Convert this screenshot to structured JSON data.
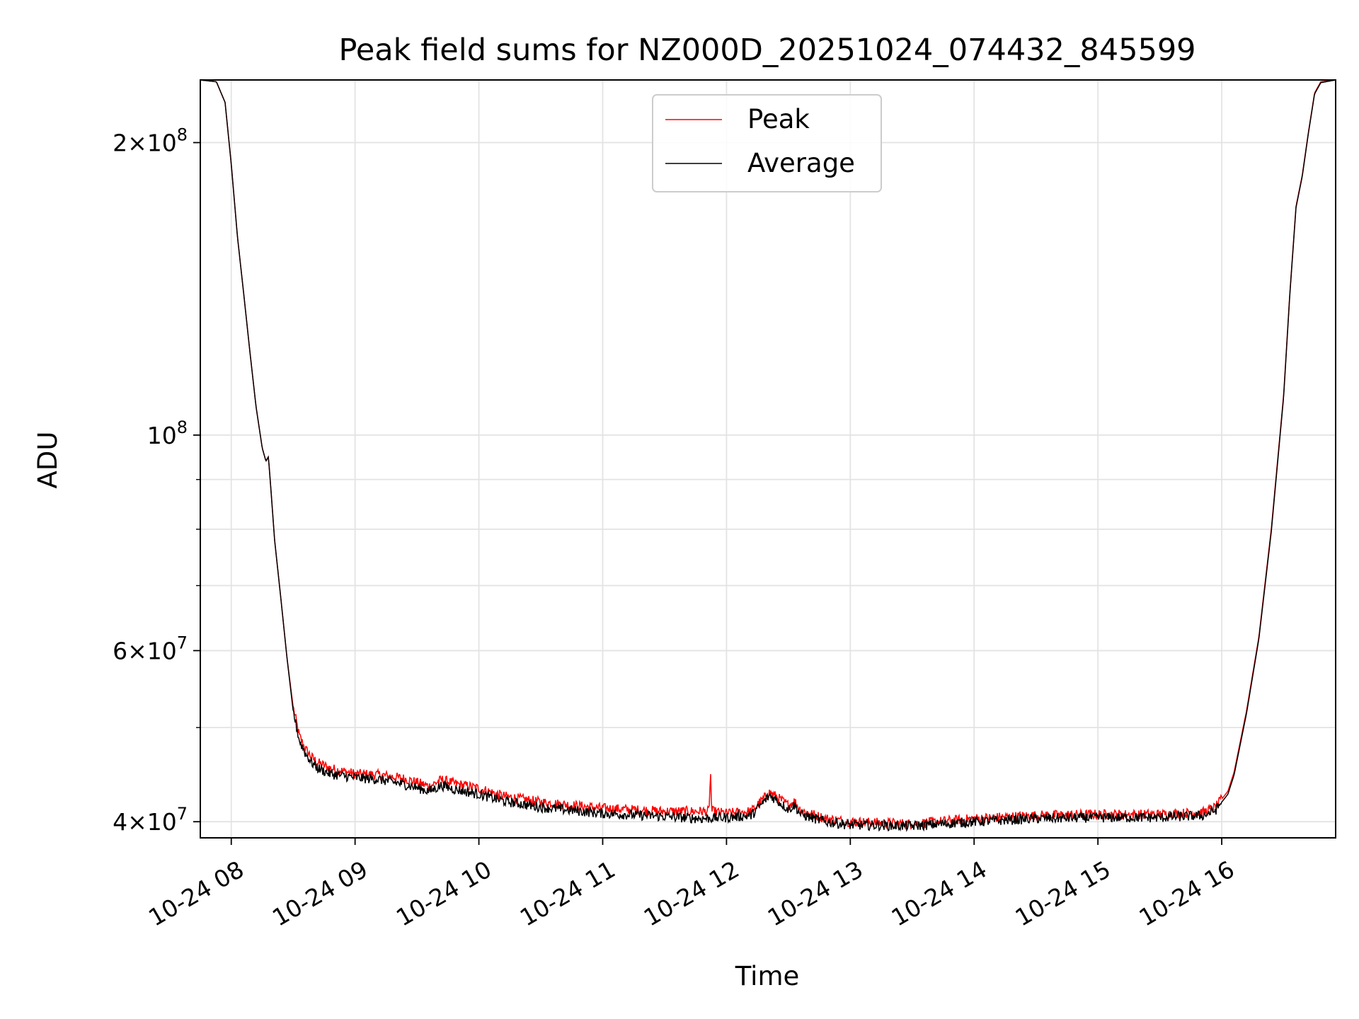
{
  "chart_data": {
    "type": "line",
    "title": "Peak field sums for NZ000D_20251024_074432_845599",
    "xlabel": "Time",
    "ylabel": "ADU",
    "yscale": "log",
    "xlim": [
      7.75,
      16.92
    ],
    "ylim": [
      38500000,
      232000000
    ],
    "grid": true,
    "legend_position": "top-center",
    "x_ticks": [
      {
        "value": 8,
        "label": "10-24 08"
      },
      {
        "value": 9,
        "label": "10-24 09"
      },
      {
        "value": 10,
        "label": "10-24 10"
      },
      {
        "value": 11,
        "label": "10-24 11"
      },
      {
        "value": 12,
        "label": "10-24 12"
      },
      {
        "value": 13,
        "label": "10-24 13"
      },
      {
        "value": 14,
        "label": "10-24 14"
      },
      {
        "value": 15,
        "label": "10-24 15"
      },
      {
        "value": 16,
        "label": "10-24 16"
      }
    ],
    "y_major_ticks": [
      {
        "value": 40000000,
        "mant": "4",
        "exp": "7"
      },
      {
        "value": 60000000,
        "mant": "6",
        "exp": "7"
      },
      {
        "value": 100000000,
        "mant": "",
        "exp": "8"
      },
      {
        "value": 200000000,
        "mant": "2",
        "exp": "8"
      }
    ],
    "y_minor_grid": [
      50000000,
      70000000,
      80000000,
      90000000
    ],
    "x_units": "hours (2025-10-24)",
    "series": [
      {
        "name": "Peak",
        "color": "#ff0000",
        "noise": 0.012,
        "x": [
          7.75,
          7.88,
          7.95,
          8.0,
          8.05,
          8.1,
          8.15,
          8.2,
          8.25,
          8.28,
          8.3,
          8.32,
          8.35,
          8.4,
          8.45,
          8.5,
          8.55,
          8.6,
          8.65,
          8.7,
          8.8,
          8.9,
          9.0,
          9.2,
          9.4,
          9.6,
          9.7,
          9.8,
          10.0,
          10.2,
          10.5,
          11.0,
          11.5,
          11.8,
          11.86,
          11.87,
          11.88,
          12.0,
          12.2,
          12.35,
          12.5,
          12.55,
          12.6,
          12.8,
          13.0,
          13.5,
          14.0,
          14.5,
          15.0,
          15.5,
          15.85,
          15.95,
          16.05,
          16.1,
          16.2,
          16.3,
          16.4,
          16.5,
          16.55,
          16.6,
          16.65,
          16.7,
          16.75,
          16.8,
          16.92
        ],
        "y": [
          232000000,
          231000000,
          220000000,
          190000000,
          160000000,
          140000000,
          122000000,
          107000000,
          97000000,
          94000000,
          95000000,
          88000000,
          78000000,
          68000000,
          59000000,
          52500000,
          49000000,
          47500000,
          46600000,
          46000000,
          45400000,
          45100000,
          44800000,
          44700000,
          44300000,
          43500000,
          44200000,
          43800000,
          43300000,
          42500000,
          41900000,
          41300000,
          41000000,
          41000000,
          41000000,
          45500000,
          41000000,
          40800000,
          41000000,
          42900000,
          41600000,
          42000000,
          41100000,
          40300000,
          40000000,
          39800000,
          40300000,
          40600000,
          40700000,
          40700000,
          40900000,
          41400000,
          43000000,
          45000000,
          52000000,
          62000000,
          80000000,
          110000000,
          140000000,
          172000000,
          185000000,
          205000000,
          225000000,
          231000000,
          232000000
        ]
      },
      {
        "name": "Average",
        "color": "#000000",
        "noise": 0.012,
        "x": [
          7.75,
          7.88,
          7.95,
          8.0,
          8.05,
          8.1,
          8.15,
          8.2,
          8.25,
          8.28,
          8.3,
          8.32,
          8.35,
          8.4,
          8.45,
          8.5,
          8.55,
          8.6,
          8.65,
          8.7,
          8.8,
          8.9,
          9.0,
          9.2,
          9.4,
          9.6,
          9.7,
          9.8,
          10.0,
          10.2,
          10.5,
          11.0,
          11.5,
          11.8,
          12.0,
          12.2,
          12.35,
          12.5,
          12.55,
          12.6,
          12.8,
          13.0,
          13.5,
          14.0,
          14.5,
          15.0,
          15.5,
          15.85,
          15.95,
          16.05,
          16.1,
          16.2,
          16.3,
          16.4,
          16.5,
          16.55,
          16.6,
          16.65,
          16.7,
          16.75,
          16.8,
          16.92
        ],
        "y": [
          232000000,
          231000000,
          220000000,
          190000000,
          160000000,
          140000000,
          122000000,
          107000000,
          97000000,
          94000000,
          95000000,
          88000000,
          78000000,
          68000000,
          59000000,
          52000000,
          48500000,
          47000000,
          46000000,
          45400000,
          44800000,
          44600000,
          44400000,
          44200000,
          43700000,
          43000000,
          43600000,
          43200000,
          42700000,
          42000000,
          41400000,
          40800000,
          40500000,
          40300000,
          40400000,
          40600000,
          42600000,
          41200000,
          41600000,
          40700000,
          40000000,
          39700000,
          39600000,
          40000000,
          40300000,
          40400000,
          40400000,
          40600000,
          41100000,
          42700000,
          44700000,
          51700000,
          61700000,
          79500000,
          109500000,
          139500000,
          171500000,
          184500000,
          204500000,
          224500000,
          230500000,
          232000000
        ]
      }
    ]
  }
}
